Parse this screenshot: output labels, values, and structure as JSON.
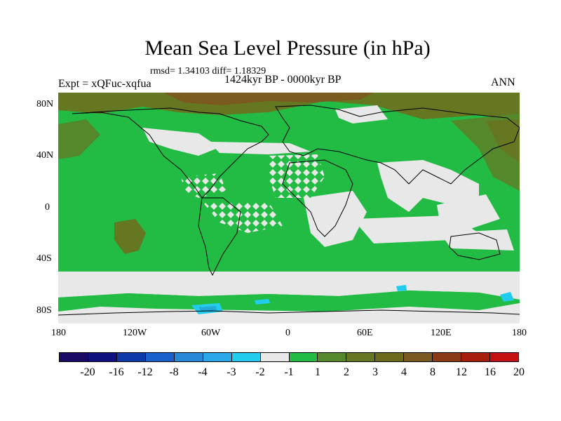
{
  "title": "Mean Sea Level Pressure (in hPa)",
  "stats": "rmsd= 1.34103 diff= 1.18329",
  "period": "1424kyr BP - 0000kyr BP",
  "experiment": "Expt = xQFuc-xqfua",
  "season": "ANN",
  "lat_ticks": [
    "80N",
    "40N",
    "0",
    "40S",
    "80S"
  ],
  "lon_ticks": [
    "180",
    "120W",
    "60W",
    "0",
    "60E",
    "120E",
    "180"
  ],
  "colors": {
    "light_green": "#22bb44",
    "mid_green": "#55882a",
    "olive": "#667722",
    "brown": "#7a5a1e",
    "neutral": "#e8e8e8",
    "cyan": "#22ccee",
    "cyan_dark": "#22aadd",
    "coast": "#000000"
  },
  "colorbar": {
    "colors": [
      "#1a0a66",
      "#10107f",
      "#0c3aa8",
      "#1960cc",
      "#2a88d8",
      "#2aa8e8",
      "#22ccee",
      "#e8e8e8",
      "#22bb44",
      "#55882a",
      "#667722",
      "#6e6a1c",
      "#7a5a1e",
      "#8a3a14",
      "#a81e0c",
      "#c41010"
    ],
    "labels": [
      "-20",
      "-16",
      "-12",
      "-8",
      "-4",
      "-3",
      "-2",
      "-1",
      "1",
      "2",
      "3",
      "4",
      "8",
      "12",
      "16",
      "20"
    ]
  }
}
